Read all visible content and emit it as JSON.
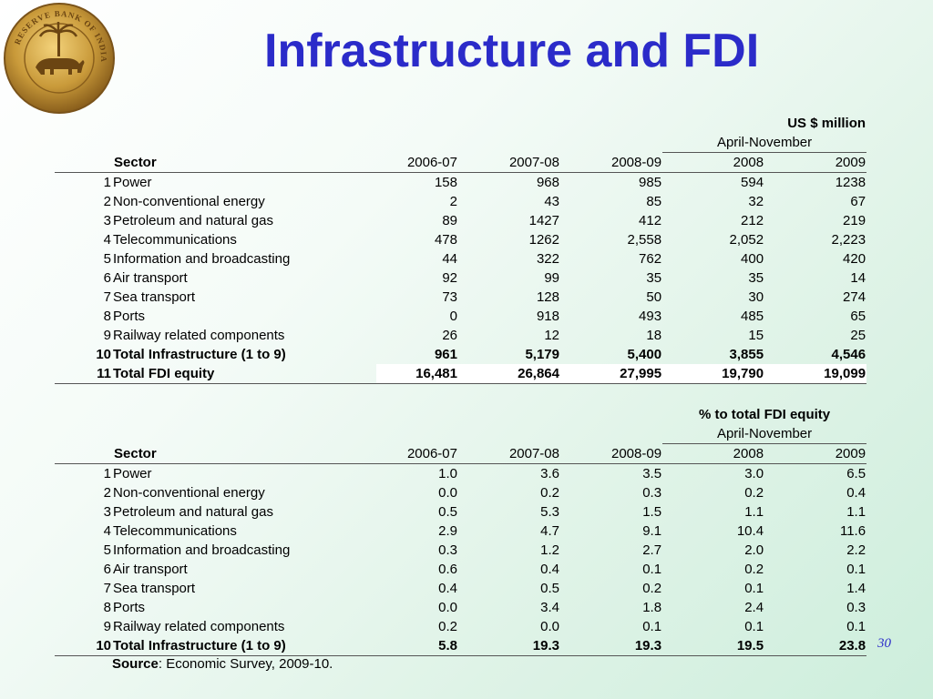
{
  "slide": {
    "title": "Infrastructure and FDI",
    "page_number": "30",
    "logo": {
      "name": "reserve-bank-of-india-seal",
      "text": "RESERVE BANK OF INDIA"
    }
  },
  "colors": {
    "title": "#2b2bc9",
    "background_end": "#cdeedc"
  },
  "table1": {
    "unit": "US $ million",
    "period_label": "April-November",
    "headers": [
      "Sector",
      "2006-07",
      "2007-08",
      "2008-09",
      "2008",
      "2009"
    ],
    "rows": [
      [
        "1",
        "Power",
        "158",
        "968",
        "985",
        "594",
        "1238"
      ],
      [
        "2",
        "Non-conventional energy",
        "2",
        "43",
        "85",
        "32",
        "67"
      ],
      [
        "3",
        "Petroleum and natural gas",
        "89",
        "1427",
        "412",
        "212",
        "219"
      ],
      [
        "4",
        "Telecommunications",
        "478",
        "1262",
        "2,558",
        "2,052",
        "2,223"
      ],
      [
        "5",
        "Information and broadcasting",
        "44",
        "322",
        "762",
        "400",
        "420"
      ],
      [
        "6",
        "Air transport",
        "92",
        "99",
        "35",
        "35",
        "14"
      ],
      [
        "7",
        "Sea transport",
        "73",
        "128",
        "50",
        "30",
        "274"
      ],
      [
        "8",
        "Ports",
        "0",
        "918",
        "493",
        "485",
        "65"
      ],
      [
        "9",
        "Railway related components",
        "26",
        "12",
        "18",
        "15",
        "25"
      ],
      [
        "10",
        "Total Infrastructure (1 to 9)",
        "961",
        "5,179",
        "5,400",
        "3,855",
        "4,546"
      ],
      [
        "11",
        "Total FDI equity",
        "16,481",
        "26,864",
        "27,995",
        "19,790",
        "19,099"
      ]
    ]
  },
  "table2": {
    "unit": "% to total FDI equity",
    "period_label": "April-November",
    "headers": [
      "Sector",
      "2006-07",
      "2007-08",
      "2008-09",
      "2008",
      "2009"
    ],
    "rows": [
      [
        "1",
        "Power",
        "1.0",
        "3.6",
        "3.5",
        "3.0",
        "6.5"
      ],
      [
        "2",
        "Non-conventional energy",
        "0.0",
        "0.2",
        "0.3",
        "0.2",
        "0.4"
      ],
      [
        "3",
        "Petroleum and natural gas",
        "0.5",
        "5.3",
        "1.5",
        "1.1",
        "1.1"
      ],
      [
        "4",
        "Telecommunications",
        "2.9",
        "4.7",
        "9.1",
        "10.4",
        "11.6"
      ],
      [
        "5",
        "Information and broadcasting",
        "0.3",
        "1.2",
        "2.7",
        "2.0",
        "2.2"
      ],
      [
        "6",
        "Air transport",
        "0.6",
        "0.4",
        "0.1",
        "0.2",
        "0.1"
      ],
      [
        "7",
        "Sea transport",
        "0.4",
        "0.5",
        "0.2",
        "0.1",
        "1.4"
      ],
      [
        "8",
        "Ports",
        "0.0",
        "3.4",
        "1.8",
        "2.4",
        "0.3"
      ],
      [
        "9",
        "Railway related components",
        "0.2",
        "0.0",
        "0.1",
        "0.1",
        "0.1"
      ],
      [
        "10",
        "Total Infrastructure (1 to 9)",
        "5.8",
        "19.3",
        "19.3",
        "19.5",
        "23.8"
      ]
    ]
  },
  "source": {
    "label": "Source",
    "text": ": Economic Survey, 2009-10."
  }
}
